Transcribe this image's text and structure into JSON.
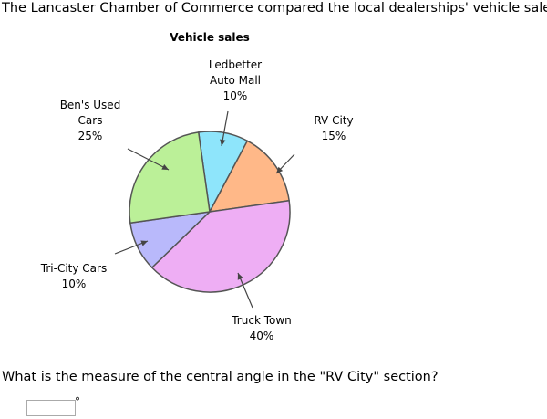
{
  "problem": {
    "intro": "The Lancaster Chamber of Commerce compared the local dealerships' vehicle sales.",
    "question": "What is the measure of the central angle in the \"RV City\" section?",
    "answer_value": "",
    "degree_symbol": "°"
  },
  "chart_data": {
    "type": "pie",
    "title": "Vehicle sales",
    "unit": "%",
    "slices": [
      {
        "label_lines": [
          "Ledbetter",
          "Auto Mall"
        ],
        "value": 10,
        "color": "#8ee5fb"
      },
      {
        "label_lines": [
          "RV City"
        ],
        "value": 15,
        "color": "#ffb888"
      },
      {
        "label_lines": [
          "Truck Town"
        ],
        "value": 40,
        "color": "#eeaef4"
      },
      {
        "label_lines": [
          "Tri-City Cars"
        ],
        "value": 10,
        "color": "#b9b9fb"
      },
      {
        "label_lines": [
          "Ben's Used",
          "Cars"
        ],
        "value": 25,
        "color": "#bbf098"
      }
    ]
  }
}
